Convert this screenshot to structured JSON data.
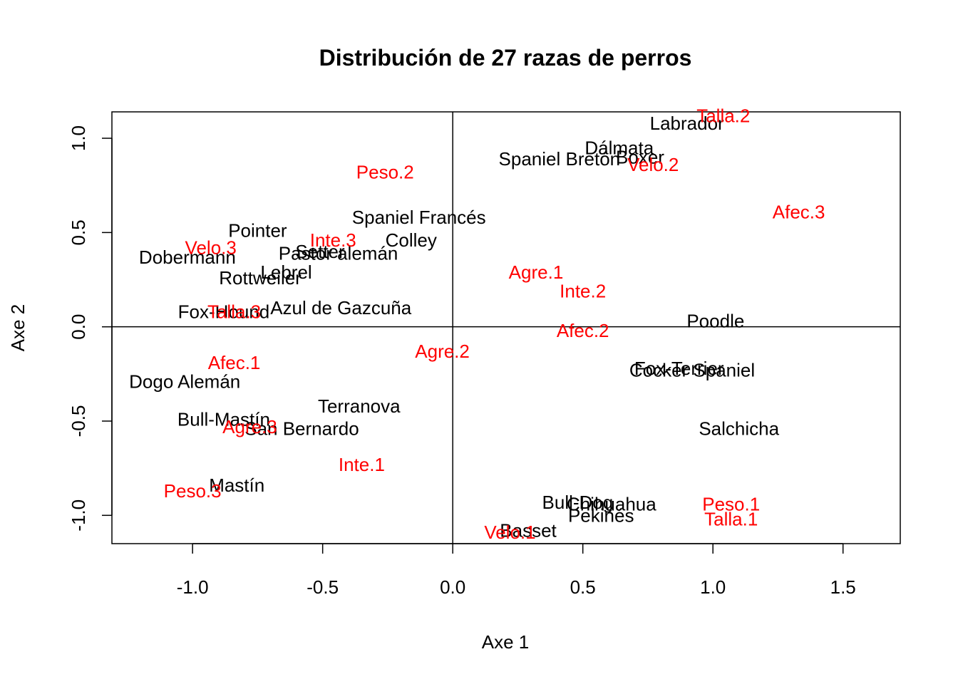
{
  "chart_data": {
    "type": "scatter",
    "title": "Distribución de 27 razas de perros",
    "xlabel": "Axe 1",
    "ylabel": "Axe 2",
    "xlim": [
      -1.31,
      1.72
    ],
    "ylim": [
      -1.15,
      1.14
    ],
    "xticks": [
      -1.0,
      -0.5,
      0.0,
      0.5,
      1.0,
      1.5
    ],
    "yticks": [
      -1.0,
      -0.5,
      0.0,
      0.5,
      1.0
    ],
    "xtick_labels": [
      "-1.0",
      "-0.5",
      "0.0",
      "0.5",
      "1.0",
      "1.5"
    ],
    "ytick_labels": [
      "-1.0",
      "-0.5",
      "0.0",
      "0.5",
      "1.0"
    ],
    "reference_lines": {
      "x": 0,
      "y": 0
    },
    "grid": false,
    "colors": {
      "breeds": "#000000",
      "categories": "#ff0000"
    },
    "series": [
      {
        "color": "#000000",
        "points": [
          {
            "label": "Labrador",
            "x": 0.9,
            "y": 1.08
          },
          {
            "label": "Dálmata",
            "x": 0.64,
            "y": 0.95
          },
          {
            "label": "Spaniel Bretón",
            "x": 0.41,
            "y": 0.89
          },
          {
            "label": "Boxer",
            "x": 0.72,
            "y": 0.9
          },
          {
            "label": "Spaniel Francés",
            "x": -0.13,
            "y": 0.58
          },
          {
            "label": "Pointer",
            "x": -0.75,
            "y": 0.51
          },
          {
            "label": "Colley",
            "x": -0.16,
            "y": 0.46
          },
          {
            "label": "Dobermann",
            "x": -1.02,
            "y": 0.37
          },
          {
            "label": "Pastor alemán",
            "x": -0.44,
            "y": 0.39
          },
          {
            "label": "Setter",
            "x": -0.51,
            "y": 0.4
          },
          {
            "label": "Rottweiler",
            "x": -0.74,
            "y": 0.26
          },
          {
            "label": "Lebrel",
            "x": -0.64,
            "y": 0.29
          },
          {
            "label": "Azul de Gazcuña",
            "x": -0.43,
            "y": 0.1
          },
          {
            "label": "Fox-Hound",
            "x": -0.88,
            "y": 0.08
          },
          {
            "label": "Poodle",
            "x": 1.01,
            "y": 0.03
          },
          {
            "label": "Fox-Terrier",
            "x": 0.87,
            "y": -0.22
          },
          {
            "label": "Cocker Spaniel",
            "x": 0.92,
            "y": -0.23
          },
          {
            "label": "Dogo Alemán",
            "x": -1.03,
            "y": -0.29
          },
          {
            "label": "Terranova",
            "x": -0.36,
            "y": -0.42
          },
          {
            "label": "Bull-Mastín",
            "x": -0.88,
            "y": -0.49
          },
          {
            "label": "San Bernardo",
            "x": -0.58,
            "y": -0.54
          },
          {
            "label": "Salchicha",
            "x": 1.1,
            "y": -0.54
          },
          {
            "label": "Mastín",
            "x": -0.83,
            "y": -0.84
          },
          {
            "label": "Bull-Dog",
            "x": 0.48,
            "y": -0.93
          },
          {
            "label": "Chihuahua",
            "x": 0.61,
            "y": -0.94
          },
          {
            "label": "Pekinés",
            "x": 0.57,
            "y": -1.0
          },
          {
            "label": "Basset",
            "x": 0.29,
            "y": -1.08
          }
        ]
      },
      {
        "color": "#ff0000",
        "points": [
          {
            "label": "Talla.2",
            "x": 1.04,
            "y": 1.12
          },
          {
            "label": "Velo.2",
            "x": 0.77,
            "y": 0.86
          },
          {
            "label": "Peso.2",
            "x": -0.26,
            "y": 0.82
          },
          {
            "label": "Afec.3",
            "x": 1.33,
            "y": 0.61
          },
          {
            "label": "Inte.3",
            "x": -0.46,
            "y": 0.46
          },
          {
            "label": "Velo.3",
            "x": -0.93,
            "y": 0.42
          },
          {
            "label": "Agre.1",
            "x": 0.32,
            "y": 0.29
          },
          {
            "label": "Inte.2",
            "x": 0.5,
            "y": 0.19
          },
          {
            "label": "Talla.3",
            "x": -0.84,
            "y": 0.08
          },
          {
            "label": "Afec.2",
            "x": 0.5,
            "y": -0.02
          },
          {
            "label": "Agre.2",
            "x": -0.04,
            "y": -0.13
          },
          {
            "label": "Afec.1",
            "x": -0.84,
            "y": -0.19
          },
          {
            "label": "Agre.3",
            "x": -0.78,
            "y": -0.53
          },
          {
            "label": "Inte.1",
            "x": -0.35,
            "y": -0.73
          },
          {
            "label": "Peso.3",
            "x": -1.0,
            "y": -0.87
          },
          {
            "label": "Peso.1",
            "x": 1.07,
            "y": -0.94
          },
          {
            "label": "Talla.1",
            "x": 1.07,
            "y": -1.02
          },
          {
            "label": "Velo.1",
            "x": 0.22,
            "y": -1.09
          }
        ]
      }
    ]
  }
}
